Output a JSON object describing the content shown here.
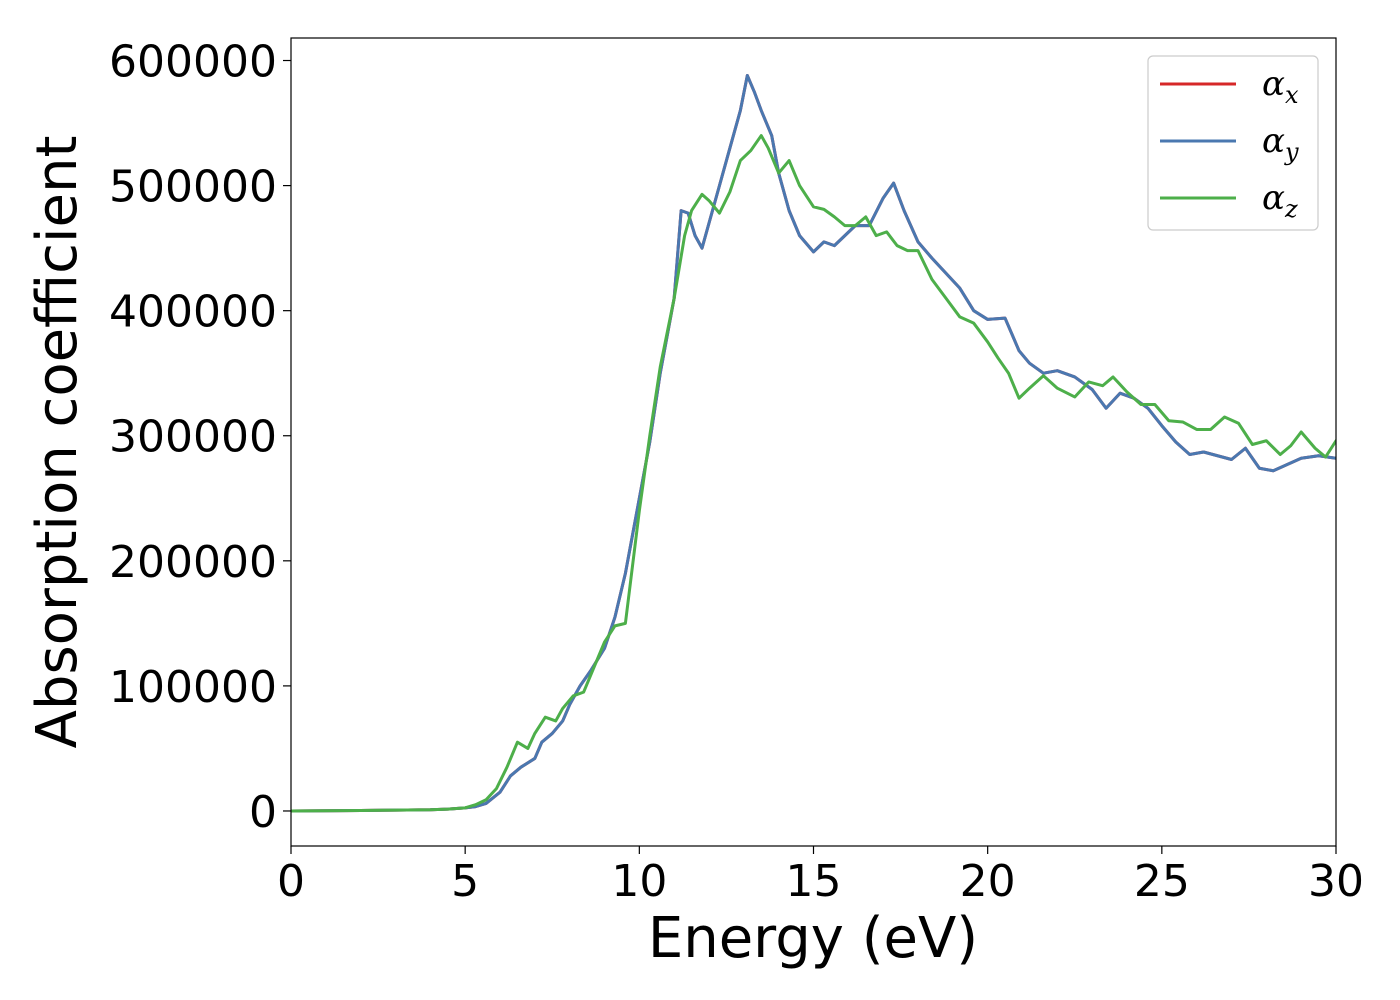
{
  "chart_data": {
    "type": "line",
    "title": "",
    "xlabel": "Energy (eV)",
    "ylabel": "Absorption coefficient",
    "xlim": [
      0,
      30
    ],
    "ylim": [
      -28000,
      618000
    ],
    "xticks": [
      0,
      5,
      10,
      15,
      20,
      25,
      30
    ],
    "xtick_labels": [
      "0",
      "5",
      "10",
      "15",
      "20",
      "25",
      "30"
    ],
    "yticks": [
      0,
      100000,
      200000,
      300000,
      400000,
      500000,
      600000
    ],
    "ytick_labels": [
      "0",
      "100000",
      "200000",
      "300000",
      "400000",
      "500000",
      "600000"
    ],
    "grid": false,
    "legend": {
      "placement": "top-right",
      "entries": [
        {
          "symbol": "α",
          "sub": "x",
          "color": "#d62728"
        },
        {
          "symbol": "α",
          "sub": "y",
          "color": "#4a78b0"
        },
        {
          "symbol": "α",
          "sub": "z",
          "color": "#4daf4a"
        }
      ]
    },
    "series": [
      {
        "color": "#d62728",
        "x": [
          0,
          1,
          2,
          3,
          4,
          4.5,
          5,
          5.3,
          5.6,
          6.0,
          6.3,
          6.6,
          7.0,
          7.2,
          7.5,
          7.8,
          8.0,
          8.3,
          8.6,
          9.0,
          9.3,
          9.6,
          10.0,
          10.3,
          10.6,
          11.0,
          11.2,
          11.4,
          11.6,
          11.8,
          12.0,
          12.3,
          12.6,
          12.9,
          13.1,
          13.3,
          13.5,
          13.8,
          14.0,
          14.3,
          14.6,
          15.0,
          15.3,
          15.6,
          15.9,
          16.2,
          16.6,
          17.0,
          17.3,
          17.6,
          18.0,
          18.4,
          18.8,
          19.2,
          19.6,
          20.0,
          20.5,
          20.9,
          21.2,
          21.6,
          22.0,
          22.5,
          23.0,
          23.4,
          23.8,
          24.2,
          24.6,
          25.0,
          25.4,
          25.8,
          26.2,
          26.6,
          27.0,
          27.4,
          27.8,
          28.2,
          28.6,
          29.0,
          29.5,
          30.0
        ],
        "y": [
          0,
          200,
          400,
          700,
          1000,
          1500,
          2500,
          3500,
          6000,
          15000,
          28000,
          35000,
          42000,
          55000,
          62000,
          72000,
          85000,
          100000,
          112000,
          130000,
          155000,
          190000,
          250000,
          295000,
          350000,
          410000,
          480000,
          478000,
          460000,
          450000,
          470000,
          500000,
          530000,
          560000,
          588000,
          575000,
          560000,
          540000,
          510000,
          480000,
          460000,
          447000,
          455000,
          452000,
          460000,
          468000,
          468000,
          490000,
          502000,
          480000,
          455000,
          442000,
          430000,
          418000,
          400000,
          393000,
          394000,
          368000,
          358000,
          350000,
          352000,
          347000,
          337000,
          322000,
          334000,
          330000,
          322000,
          308000,
          295000,
          285000,
          287000,
          284000,
          281000,
          290000,
          274000,
          272000,
          277000,
          282000,
          284000,
          282000
        ]
      },
      {
        "color": "#4a78b0",
        "x": [
          0,
          1,
          2,
          3,
          4,
          4.5,
          5,
          5.3,
          5.6,
          6.0,
          6.3,
          6.6,
          7.0,
          7.2,
          7.5,
          7.8,
          8.0,
          8.3,
          8.6,
          9.0,
          9.3,
          9.6,
          10.0,
          10.3,
          10.6,
          11.0,
          11.2,
          11.4,
          11.6,
          11.8,
          12.0,
          12.3,
          12.6,
          12.9,
          13.1,
          13.3,
          13.5,
          13.8,
          14.0,
          14.3,
          14.6,
          15.0,
          15.3,
          15.6,
          15.9,
          16.2,
          16.6,
          17.0,
          17.3,
          17.6,
          18.0,
          18.4,
          18.8,
          19.2,
          19.6,
          20.0,
          20.5,
          20.9,
          21.2,
          21.6,
          22.0,
          22.5,
          23.0,
          23.4,
          23.8,
          24.2,
          24.6,
          25.0,
          25.4,
          25.8,
          26.2,
          26.6,
          27.0,
          27.4,
          27.8,
          28.2,
          28.6,
          29.0,
          29.5,
          30.0
        ],
        "y": [
          0,
          200,
          400,
          700,
          1000,
          1500,
          2500,
          3500,
          6000,
          15000,
          28000,
          35000,
          42000,
          55000,
          62000,
          72000,
          85000,
          100000,
          112000,
          130000,
          155000,
          190000,
          250000,
          295000,
          350000,
          410000,
          480000,
          478000,
          460000,
          450000,
          470000,
          500000,
          530000,
          560000,
          588000,
          575000,
          560000,
          540000,
          510000,
          480000,
          460000,
          447000,
          455000,
          452000,
          460000,
          468000,
          468000,
          490000,
          502000,
          480000,
          455000,
          442000,
          430000,
          418000,
          400000,
          393000,
          394000,
          368000,
          358000,
          350000,
          352000,
          347000,
          337000,
          322000,
          334000,
          330000,
          322000,
          308000,
          295000,
          285000,
          287000,
          284000,
          281000,
          290000,
          274000,
          272000,
          277000,
          282000,
          284000,
          282000
        ]
      },
      {
        "color": "#4daf4a",
        "x": [
          0,
          1,
          2,
          3,
          4,
          4.5,
          5,
          5.3,
          5.6,
          5.9,
          6.2,
          6.5,
          6.8,
          7.0,
          7.3,
          7.6,
          7.8,
          8.1,
          8.4,
          8.7,
          9.0,
          9.3,
          9.6,
          10.0,
          10.3,
          10.6,
          11.0,
          11.3,
          11.5,
          11.8,
          12.0,
          12.3,
          12.6,
          12.9,
          13.2,
          13.5,
          13.7,
          14.0,
          14.3,
          14.6,
          15.0,
          15.3,
          15.6,
          15.9,
          16.2,
          16.5,
          16.8,
          17.1,
          17.4,
          17.7,
          18.0,
          18.4,
          18.8,
          19.2,
          19.6,
          20.0,
          20.3,
          20.6,
          20.9,
          21.2,
          21.6,
          22.0,
          22.5,
          22.9,
          23.3,
          23.6,
          24.0,
          24.4,
          24.8,
          25.2,
          25.6,
          26.0,
          26.4,
          26.8,
          27.2,
          27.6,
          28.0,
          28.4,
          28.7,
          29.0,
          29.4,
          29.7,
          30.0
        ],
        "y": [
          0,
          200,
          400,
          700,
          1000,
          1500,
          2500,
          5000,
          9000,
          18000,
          35000,
          55000,
          50000,
          62000,
          75000,
          72000,
          82000,
          92000,
          95000,
          115000,
          135000,
          148000,
          150000,
          240000,
          300000,
          355000,
          410000,
          460000,
          480000,
          493000,
          488000,
          478000,
          495000,
          520000,
          528000,
          540000,
          530000,
          510000,
          520000,
          500000,
          483000,
          481000,
          475000,
          468000,
          468000,
          475000,
          460000,
          463000,
          452000,
          448000,
          448000,
          425000,
          410000,
          395000,
          390000,
          375000,
          362000,
          350000,
          330000,
          338000,
          348000,
          338000,
          331000,
          343000,
          340000,
          347000,
          335000,
          325000,
          325000,
          312000,
          311000,
          305000,
          305000,
          315000,
          310000,
          293000,
          296000,
          285000,
          292000,
          303000,
          290000,
          283000,
          296000
        ]
      }
    ]
  }
}
